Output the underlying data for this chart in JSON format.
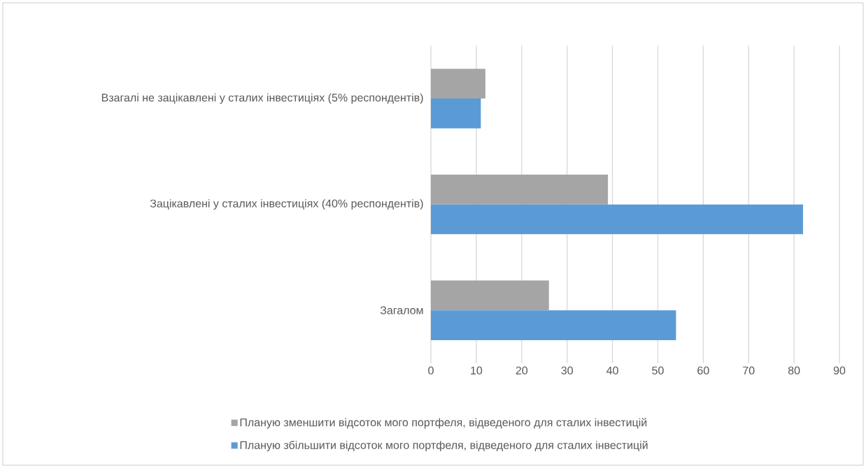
{
  "chart_data": {
    "type": "bar",
    "orientation": "horizontal",
    "categories": [
      "Взагалі не зацікавлені у сталих інвестиціях (5% респондентів)",
      "Зацікавлені у сталих інвестиціях (40% респондентів)",
      "Загалом"
    ],
    "series": [
      {
        "name": "Планую зменшити відсоток мого портфеля, відведеного для сталих інвестицій",
        "color": "#a5a5a5",
        "values": [
          12,
          39,
          26
        ]
      },
      {
        "name": "Планую збільшити відсоток мого портфеля, відведеного для сталих інвестицій",
        "color": "#5b9bd5",
        "values": [
          11,
          82,
          54
        ]
      }
    ],
    "xlim": [
      0,
      90
    ],
    "xticks": [
      0,
      10,
      20,
      30,
      40,
      50,
      60,
      70,
      80,
      90
    ],
    "grid": "x",
    "legend": "bottom"
  }
}
